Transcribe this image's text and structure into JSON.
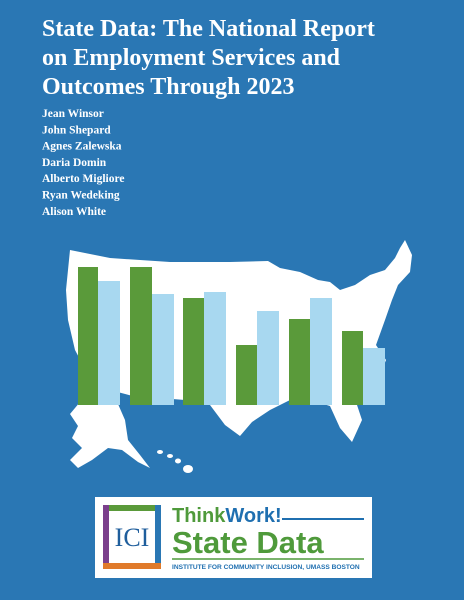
{
  "title": [
    "State Data: The National Report",
    "on Employment Services and",
    "Outcomes Through 2023"
  ],
  "authors": [
    "Jean Winsor",
    "John Shepard",
    "Agnes Zalewska",
    "Daria Domin",
    "Alberto Migliore",
    "Ryan Wedeking",
    "Alison White"
  ],
  "logo": {
    "badge": "ICI",
    "brand_think": "Think",
    "brand_work": "Work!",
    "product": "State Data",
    "institute": "INSTITUTE FOR COMMUNITY INCLUSION, UMASS BOSTON"
  }
}
